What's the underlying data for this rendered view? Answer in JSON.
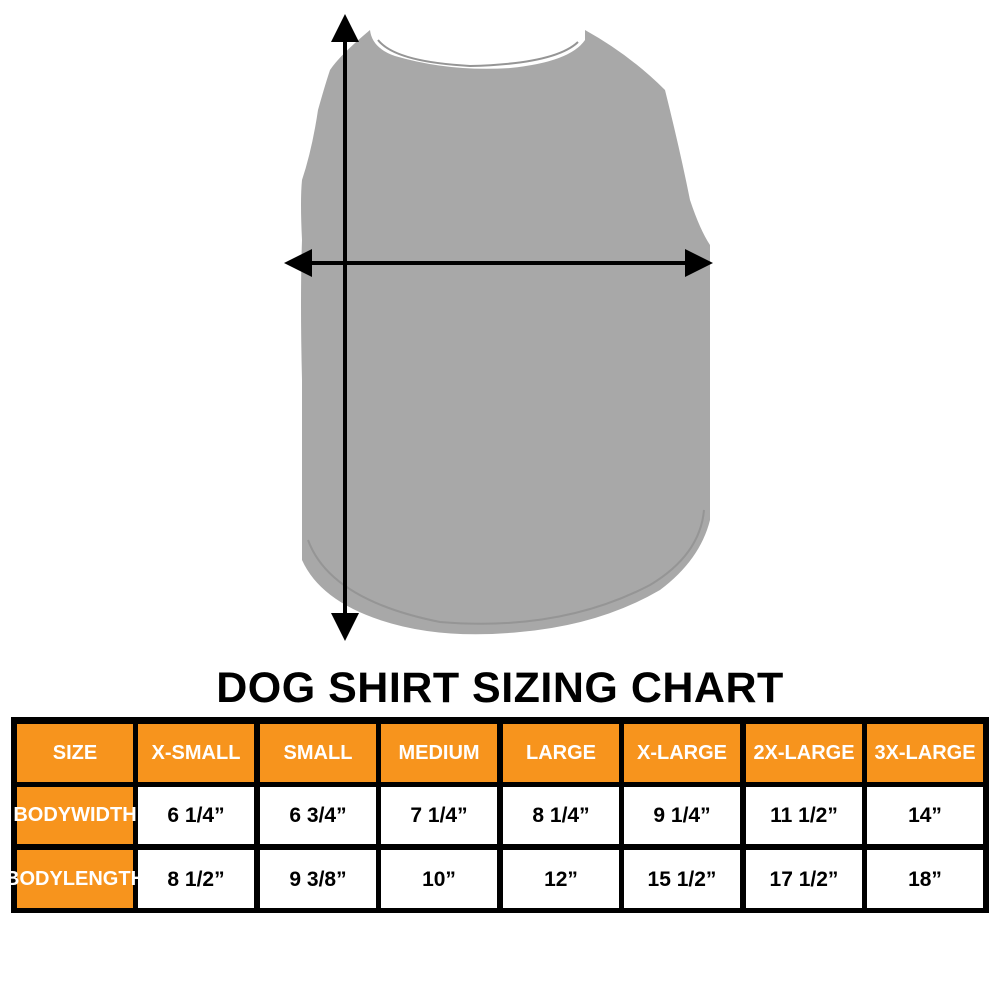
{
  "title": "DOG SHIRT SIZING CHART",
  "colors": {
    "header": "#f7941d",
    "shirt": "#a8a8a8",
    "arrows": "#000000"
  },
  "icons": {
    "vertical": "double-arrow-vertical-icon",
    "horizontal": "double-arrow-horizontal-icon"
  },
  "table": {
    "headers": [
      "SIZE",
      "X-SMALL",
      "SMALL",
      "MEDIUM",
      "LARGE",
      "X-LARGE",
      "2X-LARGE",
      "3X-LARGE"
    ],
    "rows": [
      {
        "label_line1": "BODY",
        "label_line2": "WIDTH",
        "values": [
          "6 1/4”",
          "6 3/4”",
          "7 1/4”",
          "8 1/4”",
          "9 1/4”",
          "11 1/2”",
          "14”"
        ]
      },
      {
        "label_line1": "BODY",
        "label_line2": "LENGTH",
        "values": [
          "8 1/2”",
          "9 3/8”",
          "10”",
          "12”",
          "15 1/2”",
          "17 1/2”",
          "18”"
        ]
      }
    ]
  }
}
